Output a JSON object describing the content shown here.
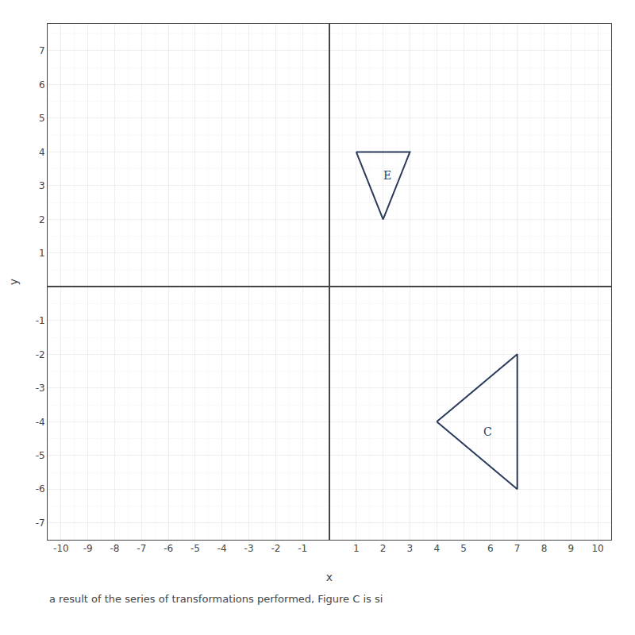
{
  "chart_data": {
    "type": "polygon",
    "xlabel": "x",
    "ylabel": "y",
    "caption": "a result of the series of transformations performed, Figure C is si",
    "xlim": [
      -10.5,
      10.5
    ],
    "ylim": [
      -7.5,
      7.8
    ],
    "xticks": [
      -10,
      -9,
      -8,
      -7,
      -6,
      -5,
      -4,
      -3,
      -2,
      -1,
      1,
      2,
      3,
      4,
      5,
      6,
      7,
      8,
      9,
      10
    ],
    "yticks": [
      -7,
      -6,
      -5,
      -4,
      -3,
      -2,
      -1,
      1,
      2,
      3,
      4,
      5,
      6,
      7
    ],
    "grid": true,
    "series": [
      {
        "color": "#2a3a5c",
        "x": [
          1,
          3,
          2
        ],
        "y": [
          4,
          4,
          2
        ]
      },
      {
        "color": "#2a3a5c",
        "x": [
          4,
          7,
          7
        ],
        "y": [
          -4,
          -2,
          -6
        ]
      }
    ],
    "annotations": [
      {
        "text": "E",
        "x": 2.15,
        "y": 3.3,
        "color": "#2a3a5c"
      },
      {
        "text": "C",
        "x": 5.9,
        "y": -4.3,
        "color": "#2a3a5c"
      }
    ]
  }
}
